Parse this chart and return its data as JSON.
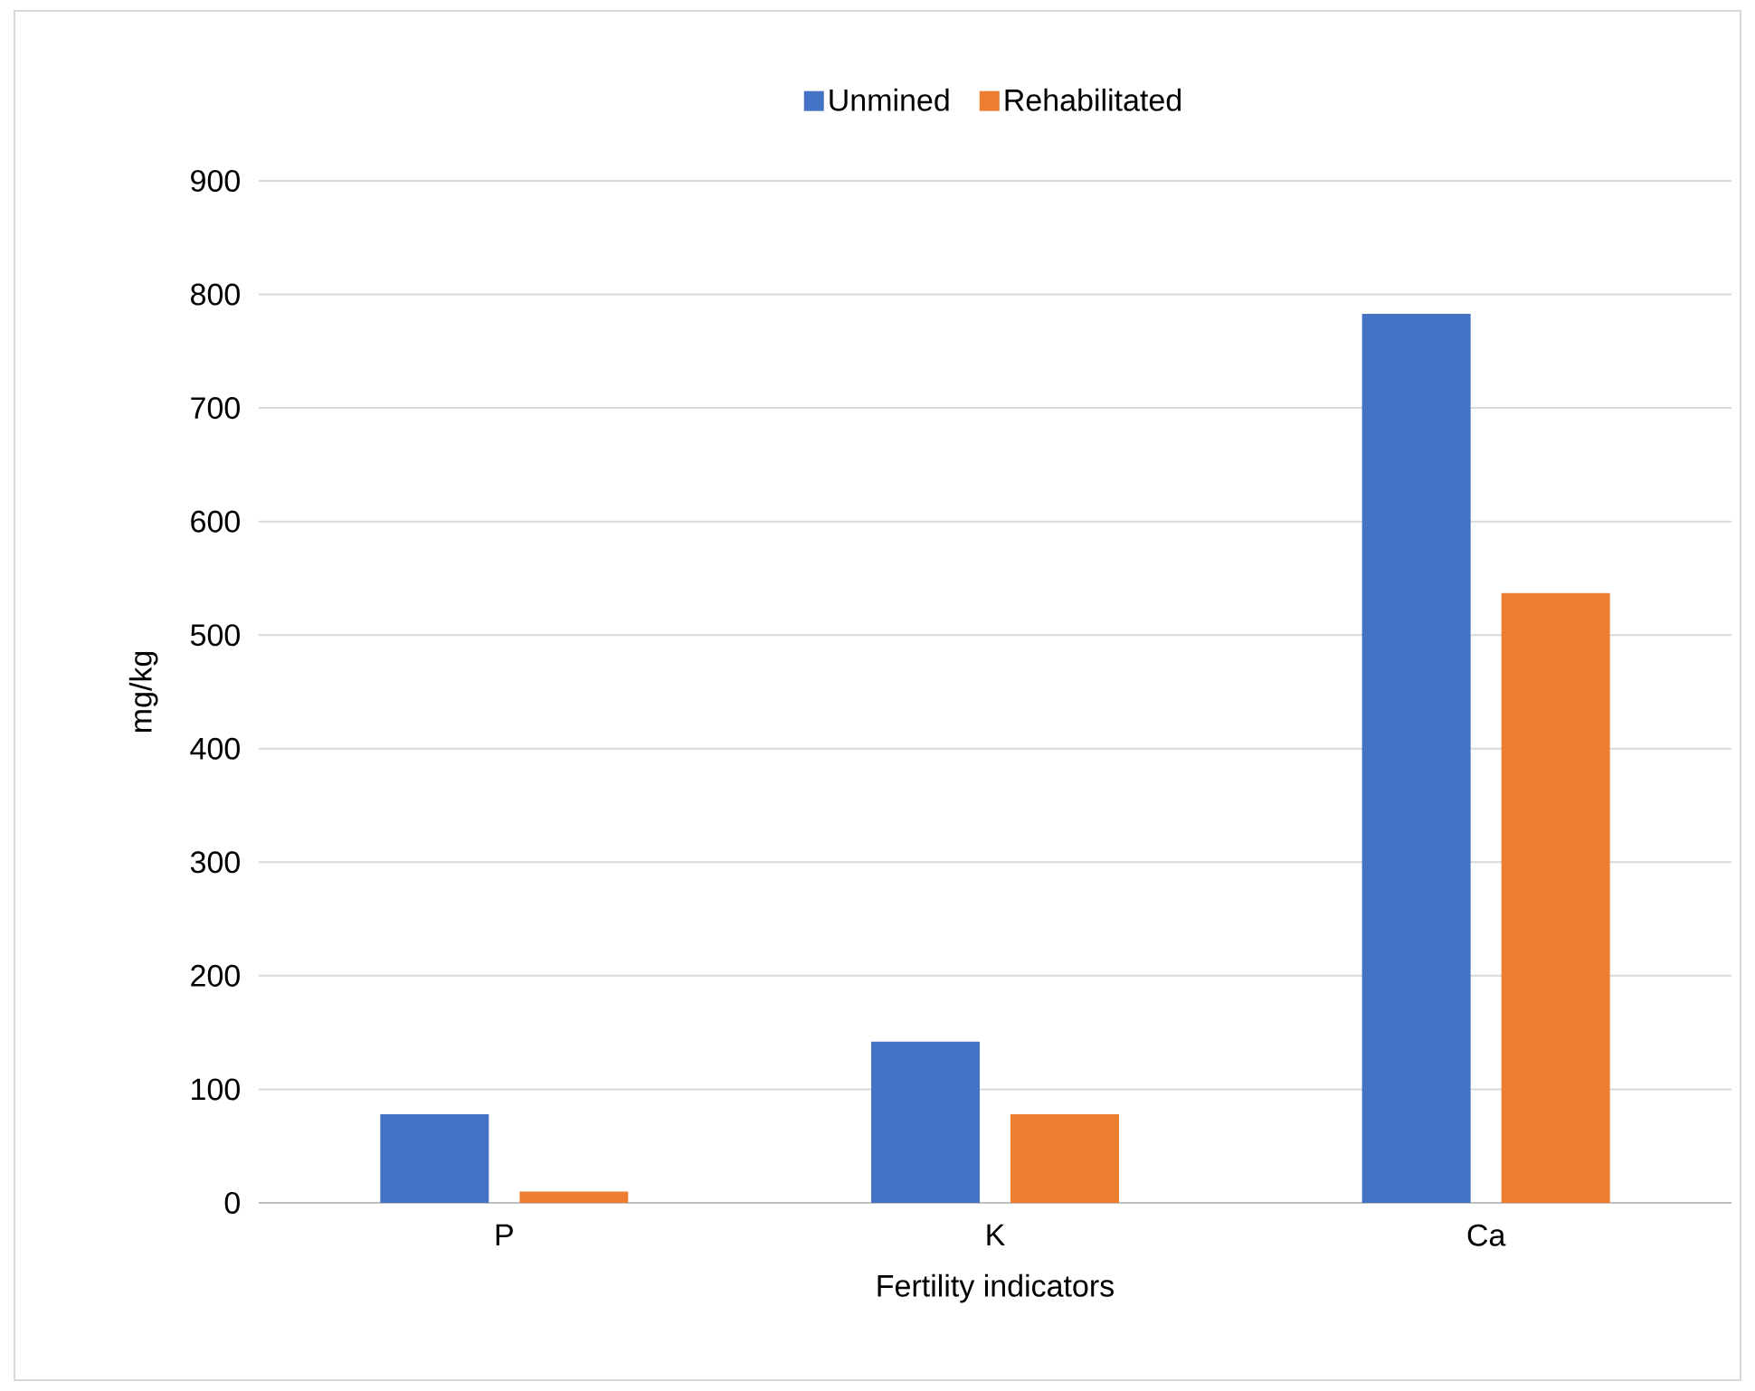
{
  "chart_data": {
    "type": "bar",
    "xlabel": "Fertility indicators",
    "ylabel": "mg/kg",
    "categories": [
      "P",
      "K",
      "Ca"
    ],
    "series": [
      {
        "name": "Unmined",
        "color": "#4472c4",
        "values": [
          78,
          142,
          783
        ]
      },
      {
        "name": "Rehabilitated",
        "color": "#ed7d31",
        "values": [
          10,
          78,
          537
        ]
      }
    ],
    "ylim": [
      0,
      900
    ],
    "yticks": [
      0,
      100,
      200,
      300,
      400,
      500,
      600,
      700,
      800,
      900
    ],
    "grid": "y",
    "legend": "top"
  }
}
